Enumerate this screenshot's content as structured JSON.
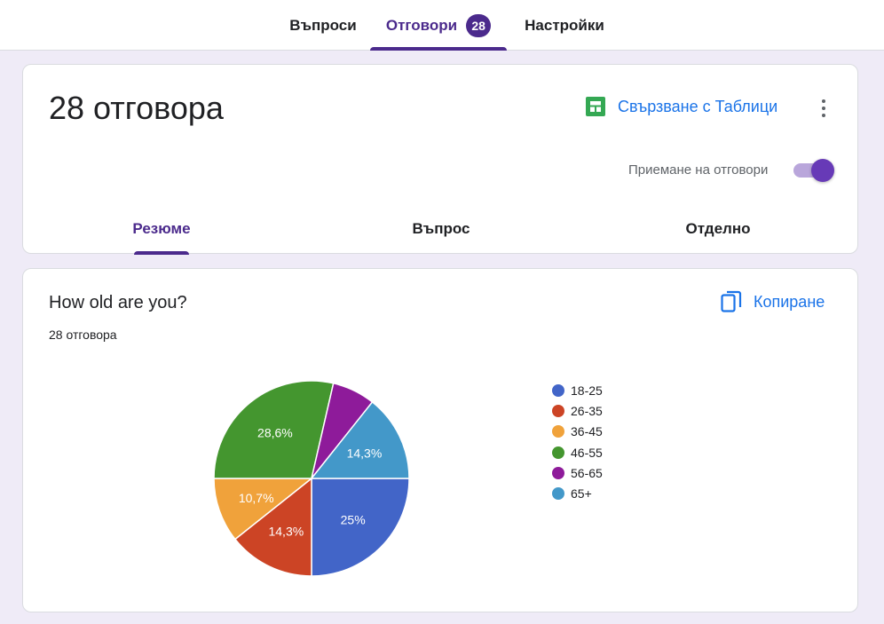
{
  "top_tabs": [
    {
      "label": "Въпроси"
    },
    {
      "label": "Отговори",
      "badge": "28"
    },
    {
      "label": "Настройки"
    }
  ],
  "summary": {
    "title": "28 отговора",
    "sheets_link": "Свързване с Таблици",
    "accepting_label": "Приемане на отговори",
    "accepting_on": true,
    "sub_tabs": [
      {
        "label": "Резюме"
      },
      {
        "label": "Въпрос"
      },
      {
        "label": "Отделно"
      }
    ]
  },
  "question": {
    "title": "How old are you?",
    "count": "28 отговора",
    "copy_label": "Копиране"
  },
  "colors": {
    "accent": "#4b2a8c",
    "link": "#1a73e8",
    "sheets_green": "#34a853",
    "toggle": "#673ab7"
  },
  "chart_data": {
    "type": "pie",
    "categories": [
      "18-25",
      "26-35",
      "36-45",
      "46-55",
      "56-65",
      "65+"
    ],
    "values": [
      25,
      14.3,
      10.7,
      28.6,
      7.1,
      14.3
    ],
    "labels": [
      "25%",
      "14,3%",
      "10,7%",
      "28,6%",
      "",
      "14,3%"
    ],
    "colors": [
      "#4265c8",
      "#cc4425",
      "#f0a23b",
      "#44962f",
      "#8e1b9a",
      "#4398c9"
    ],
    "legend": "right"
  }
}
